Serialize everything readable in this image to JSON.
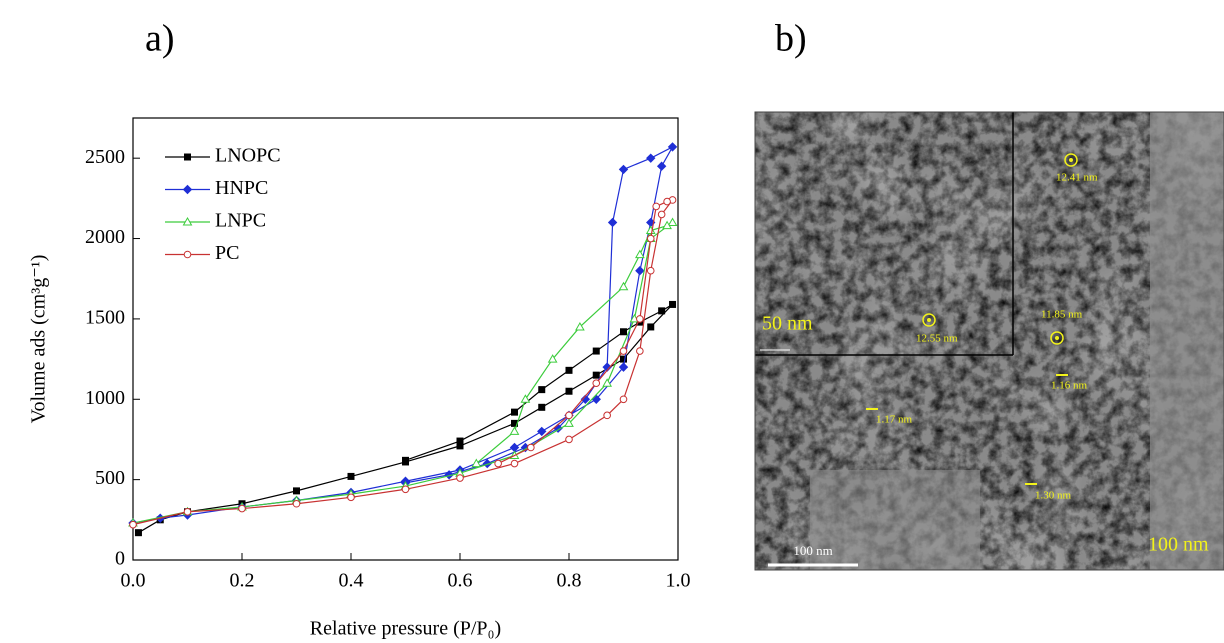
{
  "chart_data": {
    "type": "line",
    "panel_label": "a)",
    "x_label": "Relative pressure (P/P₀)",
    "y_label": "Volume ads (cm³g⁻¹)",
    "xlim": [
      0,
      1
    ],
    "ylim": [
      0,
      2750
    ],
    "xticks": [
      {
        "value": 0,
        "label": "0.0"
      },
      0.2,
      0.4,
      0.6,
      0.8,
      {
        "value": 1,
        "label": "1.0"
      }
    ],
    "yticks": [
      0,
      500,
      1000,
      1500,
      2000,
      2500
    ],
    "legend": "upper left",
    "series": [
      {
        "name": "LNOPC",
        "color": "#000000",
        "marker": "square",
        "filled": true,
        "x": [
          0.01,
          0.05,
          0.1,
          0.2,
          0.3,
          0.4,
          0.5,
          0.6,
          0.7,
          0.75,
          0.8,
          0.85,
          0.9,
          0.95,
          0.99,
          0.97,
          0.93,
          0.9,
          0.85,
          0.8,
          0.75,
          0.7,
          0.6,
          0.5
        ],
        "values": [
          170,
          250,
          300,
          350,
          430,
          520,
          610,
          710,
          850,
          950,
          1050,
          1150,
          1250,
          1450,
          1590,
          1550,
          1480,
          1420,
          1300,
          1180,
          1060,
          920,
          740,
          620
        ]
      },
      {
        "name": "HNPC",
        "color": "#1f2fd6",
        "marker": "diamond",
        "filled": true,
        "x": [
          0.0,
          0.05,
          0.1,
          0.2,
          0.3,
          0.4,
          0.5,
          0.6,
          0.7,
          0.75,
          0.8,
          0.85,
          0.9,
          0.93,
          0.95,
          0.97,
          0.99,
          0.95,
          0.9,
          0.88,
          0.87,
          0.83,
          0.78,
          0.72,
          0.65,
          0.58,
          0.5
        ],
        "values": [
          230,
          260,
          280,
          330,
          370,
          420,
          490,
          560,
          700,
          800,
          900,
          1000,
          1200,
          1800,
          2100,
          2450,
          2570,
          2500,
          2430,
          2100,
          1200,
          1000,
          820,
          700,
          600,
          530,
          480
        ]
      },
      {
        "name": "LNPC",
        "color": "#3ccc3c",
        "marker": "triangle",
        "filled": false,
        "x": [
          0.0,
          0.1,
          0.2,
          0.3,
          0.4,
          0.5,
          0.6,
          0.7,
          0.8,
          0.87,
          0.92,
          0.95,
          0.99,
          0.98,
          0.95,
          0.93,
          0.9,
          0.82,
          0.77,
          0.72,
          0.7,
          0.63
        ],
        "values": [
          230,
          300,
          330,
          370,
          410,
          460,
          540,
          650,
          850,
          1100,
          1500,
          2000,
          2100,
          2080,
          2050,
          1900,
          1700,
          1450,
          1250,
          1000,
          800,
          600
        ]
      },
      {
        "name": "PC",
        "color": "#c83232",
        "marker": "circle",
        "filled": false,
        "x": [
          0.0,
          0.1,
          0.2,
          0.3,
          0.4,
          0.5,
          0.6,
          0.7,
          0.8,
          0.87,
          0.9,
          0.93,
          0.95,
          0.97,
          0.99,
          0.98,
          0.96,
          0.95,
          0.93,
          0.9,
          0.85,
          0.8,
          0.73,
          0.67
        ],
        "values": [
          220,
          300,
          320,
          350,
          390,
          440,
          510,
          600,
          750,
          900,
          1000,
          1300,
          1800,
          2150,
          2240,
          2230,
          2200,
          2000,
          1500,
          1300,
          1100,
          900,
          700,
          600
        ]
      }
    ]
  },
  "image": {
    "panel_label": "b)",
    "annotations": [
      "12.41 nm",
      "12.55 nm",
      "11.85 nm",
      "1.16 nm",
      "1.17 nm",
      "1.30 nm"
    ],
    "inset_scale": "50 nm",
    "scale_bar": "100 nm",
    "corner_scale": "100 nm"
  }
}
